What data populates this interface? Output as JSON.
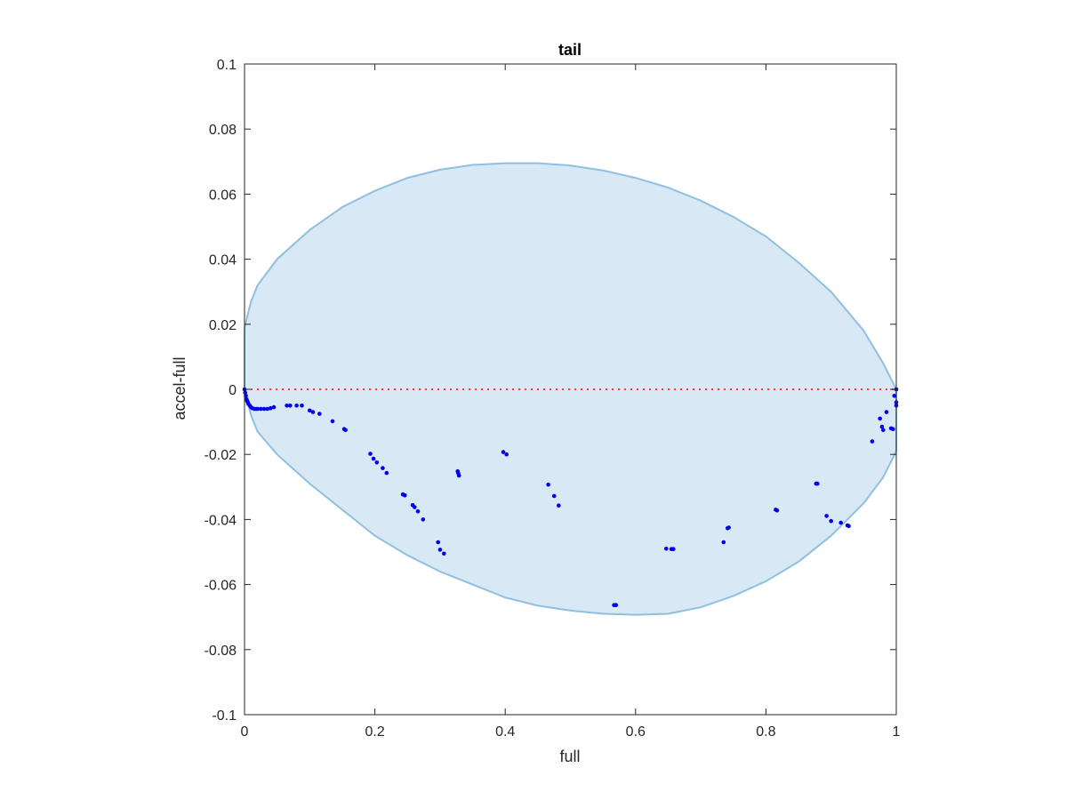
{
  "chart_data": {
    "type": "scatter",
    "title": "tail",
    "xlabel": "full",
    "ylabel": "accel-full",
    "xlim": [
      0,
      1
    ],
    "ylim": [
      -0.1,
      0.1
    ],
    "xticks": [
      0,
      0.2,
      0.4,
      0.6,
      0.8,
      1
    ],
    "xtick_labels": [
      "0",
      "0.2",
      "0.4",
      "0.6",
      "0.8",
      "1"
    ],
    "yticks": [
      -0.1,
      -0.08,
      -0.06,
      -0.04,
      -0.02,
      0,
      0.02,
      0.04,
      0.06,
      0.08,
      0.1
    ],
    "ytick_labels": [
      "-0.1",
      "-0.08",
      "-0.06",
      "-0.04",
      "-0.02",
      "0",
      "0.02",
      "0.04",
      "0.06",
      "0.08",
      "0.1"
    ],
    "grid": false,
    "colors": {
      "points": "#0000ee",
      "zero_line": "#ff3333",
      "region_fill": "#d8e8f5",
      "region_edge": "#8fc0e0",
      "axes": "#262626"
    },
    "region": {
      "upper": [
        [
          0.0,
          0.019
        ],
        [
          0.01,
          0.027
        ],
        [
          0.02,
          0.032
        ],
        [
          0.05,
          0.04
        ],
        [
          0.1,
          0.049
        ],
        [
          0.15,
          0.056
        ],
        [
          0.2,
          0.061
        ],
        [
          0.25,
          0.065
        ],
        [
          0.3,
          0.0675
        ],
        [
          0.35,
          0.069
        ],
        [
          0.4,
          0.0695
        ],
        [
          0.45,
          0.0695
        ],
        [
          0.5,
          0.0688
        ],
        [
          0.55,
          0.0673
        ],
        [
          0.6,
          0.065
        ],
        [
          0.65,
          0.062
        ],
        [
          0.7,
          0.058
        ],
        [
          0.75,
          0.053
        ],
        [
          0.8,
          0.047
        ],
        [
          0.85,
          0.039
        ],
        [
          0.9,
          0.03
        ],
        [
          0.95,
          0.018
        ],
        [
          0.98,
          0.008
        ],
        [
          1.0,
          0.0
        ]
      ],
      "lower": [
        [
          0.0,
          0.0
        ],
        [
          0.01,
          -0.008
        ],
        [
          0.02,
          -0.013
        ],
        [
          0.05,
          -0.02
        ],
        [
          0.1,
          -0.029
        ],
        [
          0.15,
          -0.037
        ],
        [
          0.2,
          -0.045
        ],
        [
          0.25,
          -0.051
        ],
        [
          0.3,
          -0.056
        ],
        [
          0.35,
          -0.06
        ],
        [
          0.4,
          -0.064
        ],
        [
          0.45,
          -0.0665
        ],
        [
          0.5,
          -0.068
        ],
        [
          0.55,
          -0.069
        ],
        [
          0.6,
          -0.0693
        ],
        [
          0.65,
          -0.069
        ],
        [
          0.7,
          -0.067
        ],
        [
          0.75,
          -0.0635
        ],
        [
          0.8,
          -0.059
        ],
        [
          0.85,
          -0.053
        ],
        [
          0.9,
          -0.045
        ],
        [
          0.95,
          -0.035
        ],
        [
          0.98,
          -0.027
        ],
        [
          1.0,
          -0.019
        ]
      ]
    },
    "zero_line_y": 0,
    "points": [
      [
        0.0,
        0.0
      ],
      [
        0.001,
        -0.001
      ],
      [
        0.002,
        -0.002
      ],
      [
        0.003,
        -0.003
      ],
      [
        0.004,
        -0.0035
      ],
      [
        0.005,
        -0.004
      ],
      [
        0.006,
        -0.0045
      ],
      [
        0.008,
        -0.005
      ],
      [
        0.01,
        -0.0055
      ],
      [
        0.012,
        -0.0058
      ],
      [
        0.015,
        -0.006
      ],
      [
        0.018,
        -0.006
      ],
      [
        0.02,
        -0.006
      ],
      [
        0.025,
        -0.006
      ],
      [
        0.03,
        -0.006
      ],
      [
        0.035,
        -0.006
      ],
      [
        0.04,
        -0.0058
      ],
      [
        0.045,
        -0.0055
      ],
      [
        0.065,
        -0.005
      ],
      [
        0.07,
        -0.005
      ],
      [
        0.08,
        -0.005
      ],
      [
        0.088,
        -0.005
      ],
      [
        0.1,
        -0.0065
      ],
      [
        0.105,
        -0.007
      ],
      [
        0.115,
        -0.0075
      ],
      [
        0.135,
        -0.0098
      ],
      [
        0.153,
        -0.0122
      ],
      [
        0.155,
        -0.0125
      ],
      [
        0.193,
        -0.0198
      ],
      [
        0.198,
        -0.0213
      ],
      [
        0.203,
        -0.0225
      ],
      [
        0.212,
        -0.0242
      ],
      [
        0.218,
        -0.0257
      ],
      [
        0.243,
        -0.0323
      ],
      [
        0.246,
        -0.0326
      ],
      [
        0.258,
        -0.0356
      ],
      [
        0.261,
        -0.0362
      ],
      [
        0.266,
        -0.0375
      ],
      [
        0.274,
        -0.04
      ],
      [
        0.297,
        -0.047
      ],
      [
        0.3,
        -0.0493
      ],
      [
        0.306,
        -0.0505
      ],
      [
        0.327,
        -0.0252
      ],
      [
        0.328,
        -0.0258
      ],
      [
        0.329,
        -0.0265
      ],
      [
        0.397,
        -0.0193
      ],
      [
        0.402,
        -0.02
      ],
      [
        0.466,
        -0.0293
      ],
      [
        0.475,
        -0.0328
      ],
      [
        0.482,
        -0.0357
      ],
      [
        0.567,
        -0.0663
      ],
      [
        0.57,
        -0.0663
      ],
      [
        0.647,
        -0.049
      ],
      [
        0.655,
        -0.0491
      ],
      [
        0.658,
        -0.0491
      ],
      [
        0.735,
        -0.047
      ],
      [
        0.741,
        -0.0427
      ],
      [
        0.743,
        -0.0425
      ],
      [
        0.815,
        -0.037
      ],
      [
        0.817,
        -0.0372
      ],
      [
        0.877,
        -0.029
      ],
      [
        0.879,
        -0.029
      ],
      [
        0.893,
        -0.0389
      ],
      [
        0.9,
        -0.0405
      ],
      [
        0.915,
        -0.041
      ],
      [
        0.925,
        -0.0418
      ],
      [
        0.927,
        -0.042
      ],
      [
        0.963,
        -0.016
      ],
      [
        0.975,
        -0.009
      ],
      [
        0.978,
        -0.0115
      ],
      [
        0.98,
        -0.0125
      ],
      [
        0.985,
        -0.007
      ],
      [
        0.992,
        -0.012
      ],
      [
        0.995,
        -0.0122
      ],
      [
        0.997,
        -0.002
      ],
      [
        1.0,
        0.0
      ],
      [
        1.0,
        -0.004
      ],
      [
        1.0,
        -0.005
      ]
    ]
  }
}
